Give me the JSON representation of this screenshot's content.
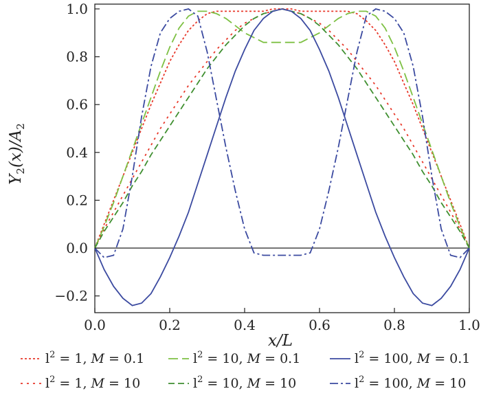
{
  "chart_data": {
    "type": "line",
    "xlabel": "x/L",
    "ylabel": "Y2(x)/A2",
    "xlim": [
      0,
      1
    ],
    "ylim": [
      -0.27,
      1.02
    ],
    "x_ticks": [
      "0.0",
      "0.2",
      "0.4",
      "0.6",
      "0.8",
      "1.0"
    ],
    "y_ticks": [
      "−0.2",
      "0.0",
      "0.2",
      "0.4",
      "0.6",
      "0.8",
      "1.0"
    ],
    "x_tick_values": [
      0,
      0.2,
      0.4,
      0.6,
      0.8,
      1.0
    ],
    "y_tick_values": [
      -0.2,
      0,
      0.2,
      0.4,
      0.6,
      0.8,
      1.0
    ],
    "grid": false,
    "legend_position": "bottom",
    "zero_line": true,
    "x": [
      0,
      0.025,
      0.05,
      0.075,
      0.1,
      0.125,
      0.15,
      0.175,
      0.2,
      0.225,
      0.25,
      0.275,
      0.3,
      0.325,
      0.35,
      0.375,
      0.4,
      0.425,
      0.45,
      0.475,
      0.5,
      0.525,
      0.55,
      0.575,
      0.6,
      0.625,
      0.65,
      0.675,
      0.7,
      0.725,
      0.75,
      0.775,
      0.8,
      0.825,
      0.85,
      0.875,
      0.9,
      0.925,
      0.95,
      0.975,
      1.0
    ],
    "series": [
      {
        "name": "l² = 1, M = 0.1",
        "legend_prefix": "l",
        "legend_mid": " = 1, ",
        "legend_m": "M",
        "legend_value": " = 0.1",
        "color": "#e8382a",
        "dash": "3,3",
        "values": [
          0,
          0.1,
          0.2,
          0.3,
          0.4,
          0.5,
          0.6,
          0.69,
          0.78,
          0.85,
          0.91,
          0.95,
          0.98,
          0.99,
          0.99,
          0.99,
          0.99,
          0.99,
          0.99,
          1.0,
          1.0,
          1.0,
          0.99,
          0.99,
          0.99,
          0.99,
          0.99,
          0.99,
          0.98,
          0.95,
          0.91,
          0.85,
          0.78,
          0.69,
          0.6,
          0.5,
          0.4,
          0.3,
          0.2,
          0.1,
          0
        ]
      },
      {
        "name": "l² = 1, M = 10",
        "legend_prefix": "l",
        "legend_mid": " = 1, ",
        "legend_m": "M",
        "legend_value": " = 10",
        "color": "#e8382a",
        "dash": "3,6",
        "values": [
          0,
          0.08,
          0.15,
          0.22,
          0.29,
          0.36,
          0.43,
          0.5,
          0.56,
          0.62,
          0.68,
          0.73,
          0.78,
          0.83,
          0.87,
          0.91,
          0.94,
          0.96,
          0.98,
          0.99,
          1.0,
          0.99,
          0.98,
          0.96,
          0.94,
          0.91,
          0.87,
          0.83,
          0.78,
          0.73,
          0.68,
          0.62,
          0.56,
          0.5,
          0.43,
          0.36,
          0.29,
          0.22,
          0.15,
          0.08,
          0
        ]
      },
      {
        "name": "l² = 10, M = 0.1",
        "legend_prefix": "l",
        "legend_mid": " = 10, ",
        "legend_m": "M",
        "legend_value": " = 0.1",
        "color": "#7dc043",
        "dash": "14,6",
        "values": [
          0,
          0.09,
          0.19,
          0.3,
          0.41,
          0.52,
          0.63,
          0.74,
          0.84,
          0.92,
          0.97,
          0.99,
          0.99,
          0.98,
          0.96,
          0.93,
          0.9,
          0.88,
          0.86,
          0.86,
          0.86,
          0.86,
          0.86,
          0.88,
          0.9,
          0.93,
          0.96,
          0.98,
          0.99,
          0.99,
          0.97,
          0.92,
          0.84,
          0.74,
          0.63,
          0.52,
          0.41,
          0.3,
          0.19,
          0.09,
          0
        ]
      },
      {
        "name": "l² = 10, M = 10",
        "legend_prefix": "l",
        "legend_mid": " = 10, ",
        "legend_m": "M",
        "legend_value": " = 10",
        "color": "#3f8f30",
        "dash": "9,5",
        "values": [
          0,
          0.07,
          0.13,
          0.19,
          0.26,
          0.32,
          0.39,
          0.45,
          0.51,
          0.57,
          0.63,
          0.69,
          0.75,
          0.8,
          0.85,
          0.89,
          0.93,
          0.96,
          0.98,
          0.99,
          1.0,
          0.99,
          0.98,
          0.96,
          0.93,
          0.89,
          0.85,
          0.8,
          0.75,
          0.69,
          0.63,
          0.57,
          0.51,
          0.45,
          0.39,
          0.32,
          0.26,
          0.19,
          0.13,
          0.07,
          0
        ]
      },
      {
        "name": "l² = 100, M = 0.1",
        "legend_prefix": "l",
        "legend_mid": " = 100, ",
        "legend_m": "M",
        "legend_value": " = 0.1",
        "color": "#3b4aa0",
        "dash": "",
        "values": [
          0,
          -0.09,
          -0.16,
          -0.21,
          -0.24,
          -0.23,
          -0.19,
          -0.12,
          -0.04,
          0.05,
          0.15,
          0.27,
          0.39,
          0.51,
          0.63,
          0.74,
          0.83,
          0.91,
          0.96,
          0.99,
          1.0,
          0.99,
          0.96,
          0.91,
          0.83,
          0.74,
          0.63,
          0.51,
          0.39,
          0.27,
          0.15,
          0.05,
          -0.04,
          -0.12,
          -0.19,
          -0.23,
          -0.24,
          -0.21,
          -0.16,
          -0.09,
          0
        ]
      },
      {
        "name": "l² = 100, M = 10",
        "legend_prefix": "l",
        "legend_mid": " = 100, ",
        "legend_m": "M",
        "legend_value": " = 10",
        "color": "#3b4aa0",
        "dash": "12,4,3,4",
        "values": [
          0,
          -0.04,
          -0.03,
          0.08,
          0.3,
          0.55,
          0.76,
          0.9,
          0.96,
          0.99,
          1.0,
          0.97,
          0.82,
          0.62,
          0.42,
          0.24,
          0.08,
          -0.02,
          -0.03,
          -0.03,
          -0.03,
          -0.03,
          -0.03,
          -0.02,
          0.08,
          0.24,
          0.42,
          0.62,
          0.82,
          0.97,
          1.0,
          0.99,
          0.96,
          0.9,
          0.76,
          0.55,
          0.3,
          0.08,
          -0.03,
          -0.04,
          0
        ]
      }
    ]
  }
}
